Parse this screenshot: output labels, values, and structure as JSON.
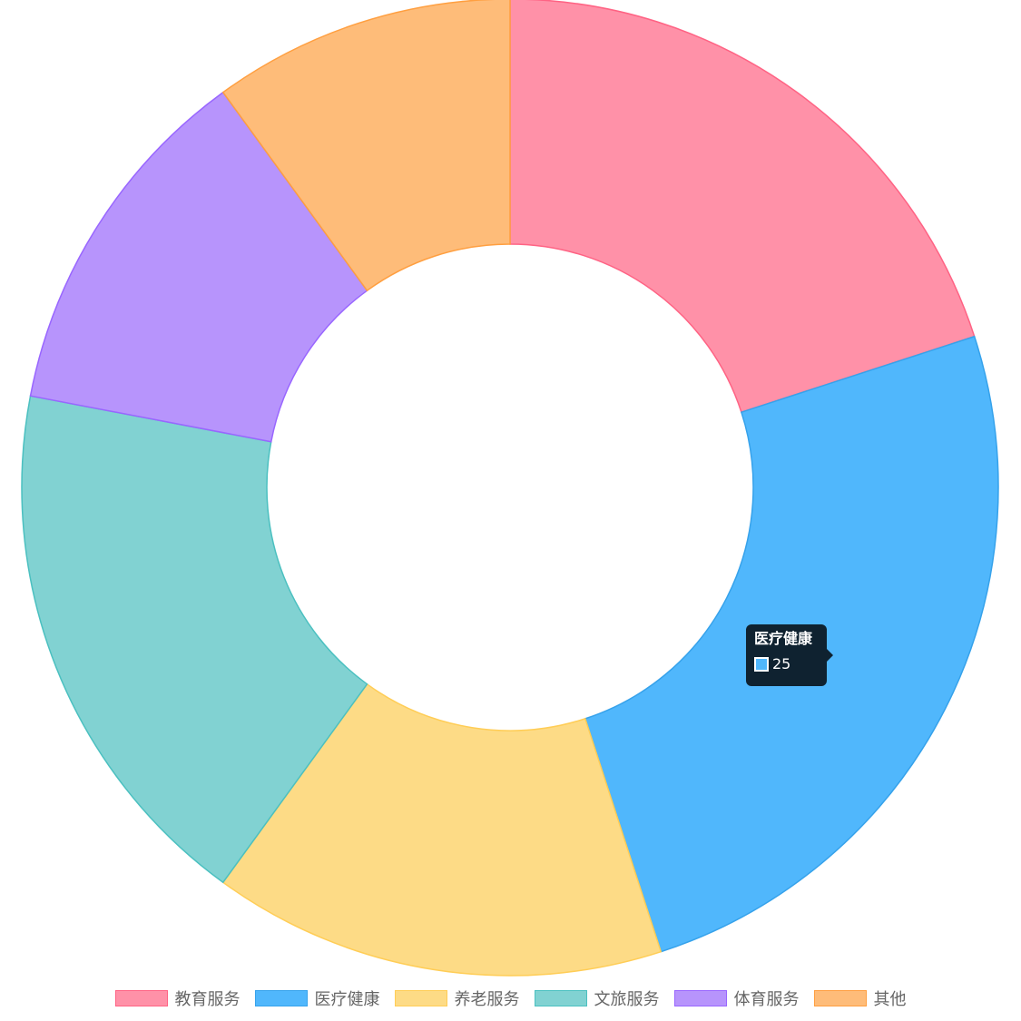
{
  "chart_data": {
    "type": "doughnut",
    "labels": [
      "教育服务",
      "医疗健康",
      "养老服务",
      "文旅服务",
      "体育服务",
      "其他"
    ],
    "values": [
      20,
      25,
      15,
      18,
      12,
      10
    ],
    "colors": {
      "fill": [
        "#ff91a8",
        "#50b7fc",
        "#fddb86",
        "#81d2d2",
        "#b794fc",
        "#febc79"
      ],
      "border": [
        "#ff6384",
        "#36a2eb",
        "#ffcd56",
        "#4bc0c0",
        "#9966ff",
        "#ff9f40"
      ]
    },
    "legend_position": "bottom",
    "tooltip": {
      "title": "医疗健康",
      "value": "25",
      "series_index": 1
    }
  }
}
